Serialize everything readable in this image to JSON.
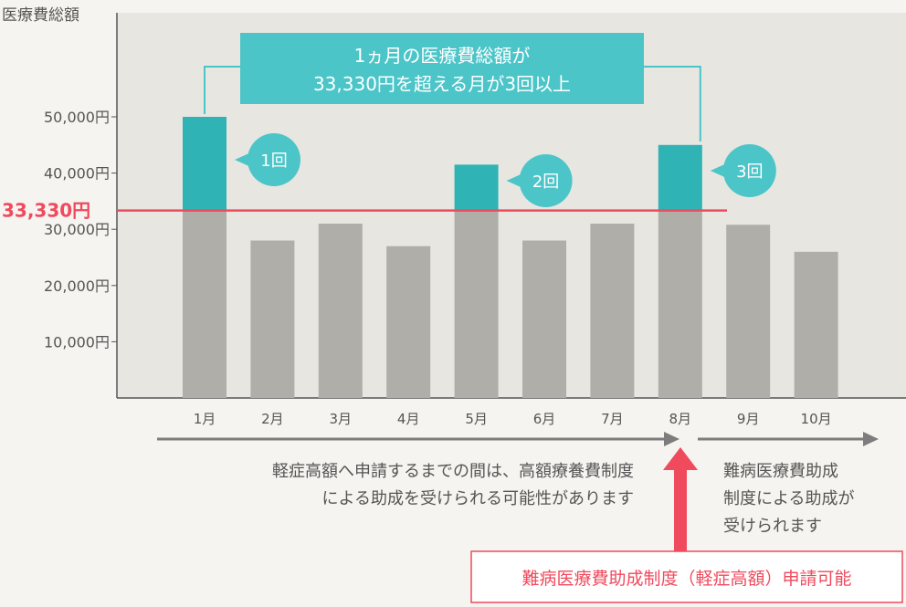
{
  "chart_data": {
    "type": "bar",
    "ylabel": "医療費総額",
    "ylim": [
      0,
      65000
    ],
    "yticks": [
      {
        "value": 10000,
        "label": "10,000円"
      },
      {
        "value": 20000,
        "label": "20,000円"
      },
      {
        "value": 30000,
        "label": "30,000円"
      },
      {
        "value": 40000,
        "label": "40,000円"
      },
      {
        "value": 50000,
        "label": "50,000円"
      }
    ],
    "categories": [
      "1月",
      "2月",
      "3月",
      "4月",
      "5月",
      "6月",
      "7月",
      "8月",
      "9月",
      "10月"
    ],
    "values": [
      50000,
      28000,
      31000,
      27000,
      41500,
      28000,
      31000,
      45000,
      30800,
      26000
    ],
    "threshold": {
      "value": 33330,
      "label": "33,330円"
    },
    "exceed_badges": [
      {
        "index": 0,
        "label": "1回"
      },
      {
        "index": 4,
        "label": "2回"
      },
      {
        "index": 7,
        "label": "3回"
      }
    ],
    "callout": [
      "1ヵ月の医療費総額が",
      "33,330円を超える月が3回以上"
    ],
    "note_left": [
      "軽症高額へ申請するまでの間は、高額療養費制度",
      "による助成を受けられる可能性があります"
    ],
    "note_right": [
      "難病医療費助成",
      "制度による助成が",
      "受けられます"
    ],
    "application_label": "難病医療費助成制度（軽症高額）申請可能",
    "colors": {
      "background": "#f5f4f0",
      "plot_area": "#e8e6e1",
      "bar": "#b0aea9",
      "excess": "#2fb3b4",
      "callout": "#4cc5c8",
      "threshold": "#f04a5d",
      "axis": "#555555",
      "text": "#555555",
      "arrow": "#7d7d7d"
    }
  }
}
